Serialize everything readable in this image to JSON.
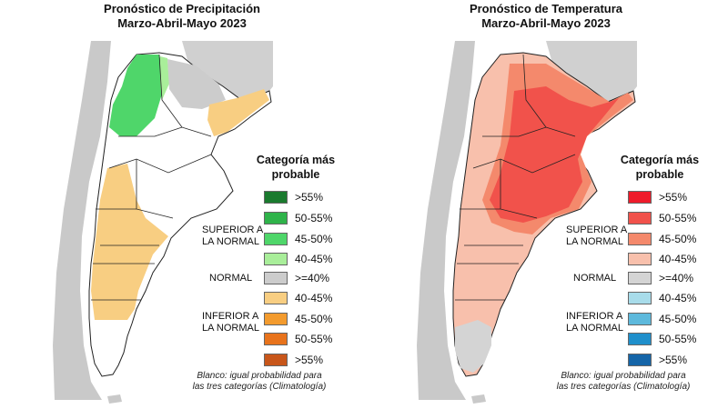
{
  "precipitation_panel": {
    "title_line1": "Pronóstico de Precipitación",
    "title_line2": "Marzo-Abril-Mayo 2023",
    "legend_title_line1": "Categoría más",
    "legend_title_line2": "probable",
    "group_superior_line1": "SUPERIOR A",
    "group_superior_line2": "LA NORMAL",
    "group_normal": "NORMAL",
    "group_inferior_line1": "INFERIOR A",
    "group_inferior_line2": "LA NORMAL",
    "legend_items": [
      {
        "label": ">55%",
        "color": "#1a7a2e"
      },
      {
        "label": "50-55%",
        "color": "#2fb34a"
      },
      {
        "label": "45-50%",
        "color": "#4fd66a"
      },
      {
        "label": "40-45%",
        "color": "#a9ee9a"
      },
      {
        "label": ">=40%",
        "color": "#cccccc"
      },
      {
        "label": "40-45%",
        "color": "#f8ce82"
      },
      {
        "label": "45-50%",
        "color": "#f39b2e"
      },
      {
        "label": "50-55%",
        "color": "#e8731c"
      },
      {
        "label": ">55%",
        "color": "#c8561a"
      }
    ],
    "note_line1": "Blanco: igual probabilidad para",
    "note_line2": "las tres categorías (Climatología)"
  },
  "temperature_panel": {
    "title_line1": "Pronóstico de Temperatura",
    "title_line2": "Marzo-Abril-Mayo 2023",
    "legend_title_line1": "Categoría más",
    "legend_title_line2": "probable",
    "group_superior_line1": "SUPERIOR A",
    "group_superior_line2": "LA NORMAL",
    "group_normal": "NORMAL",
    "group_inferior_line1": "INFERIOR A",
    "group_inferior_line2": "LA NORMAL",
    "legend_items": [
      {
        "label": ">55%",
        "color": "#ee1b2a"
      },
      {
        "label": "50-55%",
        "color": "#f1524b"
      },
      {
        "label": "45-50%",
        "color": "#f4896c"
      },
      {
        "label": "40-45%",
        "color": "#f8c0ac"
      },
      {
        "label": ">=40%",
        "color": "#d4d4d4"
      },
      {
        "label": "40-45%",
        "color": "#a8dcea"
      },
      {
        "label": "45-50%",
        "color": "#5db9dc"
      },
      {
        "label": "50-55%",
        "color": "#1f8fcb"
      },
      {
        "label": ">55%",
        "color": "#1565a8"
      }
    ],
    "note_line1": "Blanco: igual probabilidad para",
    "note_line2": "las tres categorías (Climatología)"
  },
  "colors": {
    "land_outside": "#c9c9c9",
    "sea": "#ffffff",
    "border": "#222222"
  }
}
